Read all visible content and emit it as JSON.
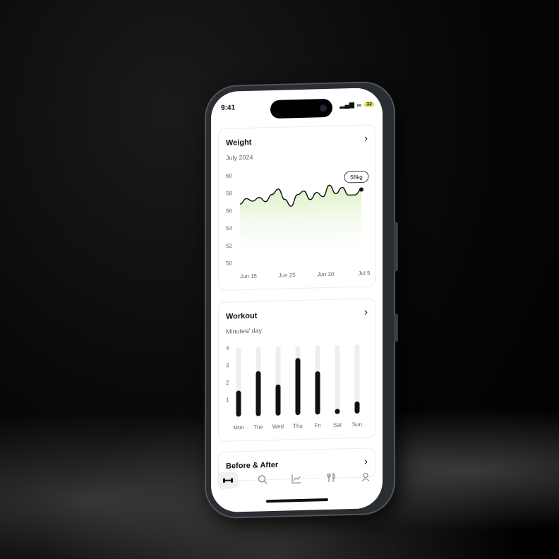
{
  "status_bar": {
    "time": "9:41",
    "battery": "32"
  },
  "weight_card": {
    "title": "Weight",
    "subtitle": "July 2024",
    "badge": "58kg",
    "y_ticks": [
      "60",
      "58",
      "56",
      "54",
      "52",
      "50"
    ],
    "x_ticks": [
      "Jun 15",
      "Jun 25",
      "Jun 30",
      "Jul 5"
    ]
  },
  "workout_card": {
    "title": "Workout",
    "subtitle": "Minutes/ day",
    "y_ticks": [
      "4",
      "3",
      "2",
      "1"
    ],
    "days": [
      "Mon",
      "Tue",
      "Wed",
      "Thu",
      "Fri",
      "Sat",
      "Sun"
    ]
  },
  "before_after_card": {
    "title": "Before & After"
  },
  "tabbar": {
    "items": [
      {
        "icon": "dumbbell-icon",
        "active": true
      },
      {
        "icon": "search-icon",
        "active": false
      },
      {
        "icon": "chart-icon",
        "active": false
      },
      {
        "icon": "fork-knife-icon",
        "active": false
      },
      {
        "icon": "person-icon",
        "active": false
      }
    ]
  },
  "colors": {
    "chart_fill": "#d9f0c2",
    "bar": "#111111",
    "bar_track": "#eeeeee",
    "battery": "#e8e04a"
  },
  "chart_data": [
    {
      "type": "area",
      "title": "Weight",
      "subtitle": "July 2024",
      "ylim": [
        50,
        60
      ],
      "x_ticks": [
        "Jun 15",
        "Jun 25",
        "Jun 30",
        "Jul 5"
      ],
      "series": [
        {
          "values": [
            56.7,
            57.3,
            57.0,
            57.4,
            56.9,
            57.7,
            58.3,
            57.1,
            56.3,
            57.6,
            58.0,
            57.0,
            57.8,
            57.3,
            58.6,
            57.6,
            58.3,
            57.4,
            57.4,
            58.0
          ]
        }
      ],
      "annotation": "58kg"
    },
    {
      "type": "bar",
      "title": "Workout",
      "subtitle": "Minutes/ day",
      "categories": [
        "Mon",
        "Tue",
        "Wed",
        "Thu",
        "Fri",
        "Sat",
        "Sun"
      ],
      "values": [
        1.5,
        2.6,
        1.8,
        3.3,
        2.5,
        0.3,
        0.7
      ],
      "ylim": [
        0,
        4
      ]
    }
  ]
}
